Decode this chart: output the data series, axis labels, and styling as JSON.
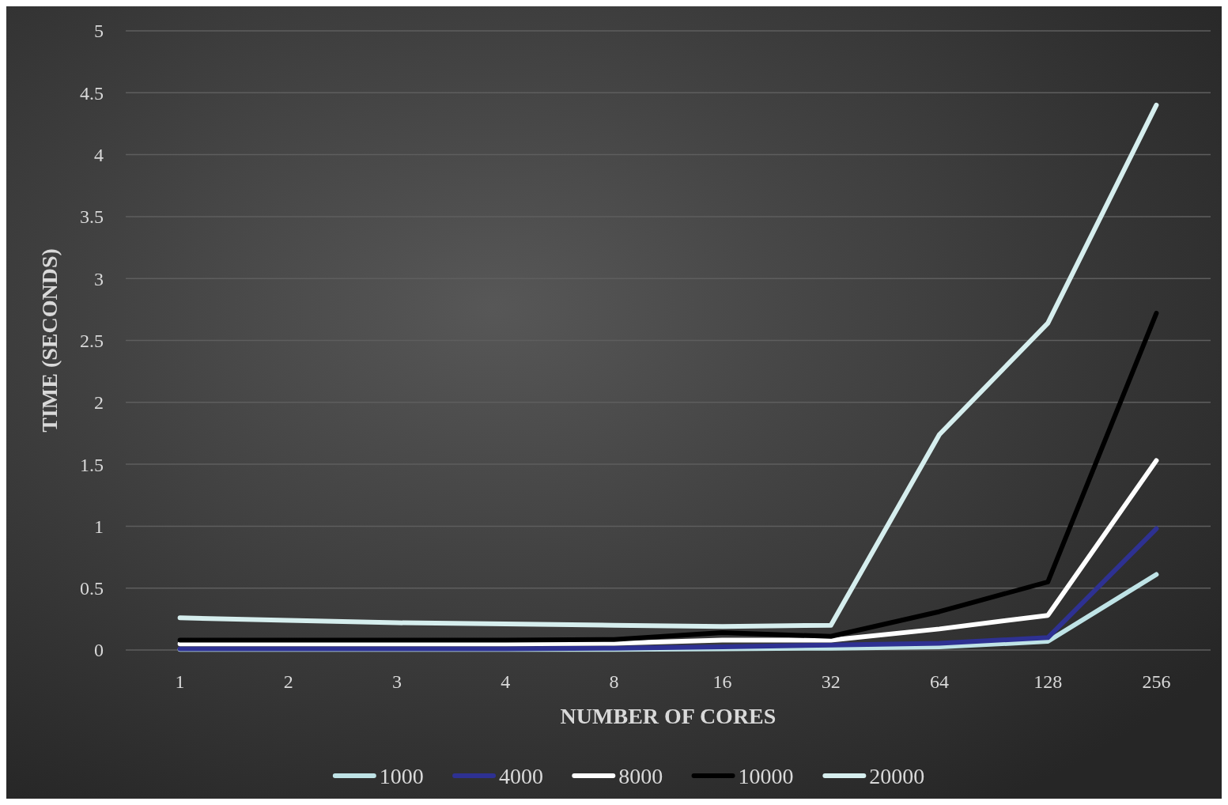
{
  "chart_data": {
    "type": "line",
    "xlabel": "NUMBER OF CORES",
    "ylabel": "TIME (SECONDS)",
    "categories": [
      "1",
      "2",
      "3",
      "4",
      "8",
      "16",
      "32",
      "64",
      "128",
      "256"
    ],
    "series": [
      {
        "name": "1000",
        "color": "#bfe3e6",
        "values": [
          0.005,
          0.005,
          0.005,
          0.005,
          0.005,
          0.01,
          0.015,
          0.025,
          0.07,
          0.61
        ]
      },
      {
        "name": "4000",
        "color": "#2e3192",
        "values": [
          0.01,
          0.01,
          0.01,
          0.01,
          0.015,
          0.025,
          0.04,
          0.055,
          0.1,
          0.98
        ]
      },
      {
        "name": "8000",
        "color": "#ffffff",
        "values": [
          0.05,
          0.05,
          0.05,
          0.05,
          0.055,
          0.08,
          0.08,
          0.17,
          0.28,
          1.53
        ]
      },
      {
        "name": "10000",
        "color": "#000000",
        "values": [
          0.08,
          0.08,
          0.08,
          0.08,
          0.085,
          0.14,
          0.11,
          0.31,
          0.55,
          2.72
        ]
      },
      {
        "name": "20000",
        "color": "#d6eeee",
        "values": [
          0.26,
          0.24,
          0.22,
          0.21,
          0.2,
          0.19,
          0.2,
          1.74,
          2.64,
          4.4
        ]
      }
    ],
    "ylim": [
      0,
      5
    ],
    "yticks": [
      0,
      0.5,
      1,
      1.5,
      2,
      2.5,
      3,
      3.5,
      4,
      4.5,
      5
    ],
    "grid": "y",
    "legend": "bottom"
  }
}
